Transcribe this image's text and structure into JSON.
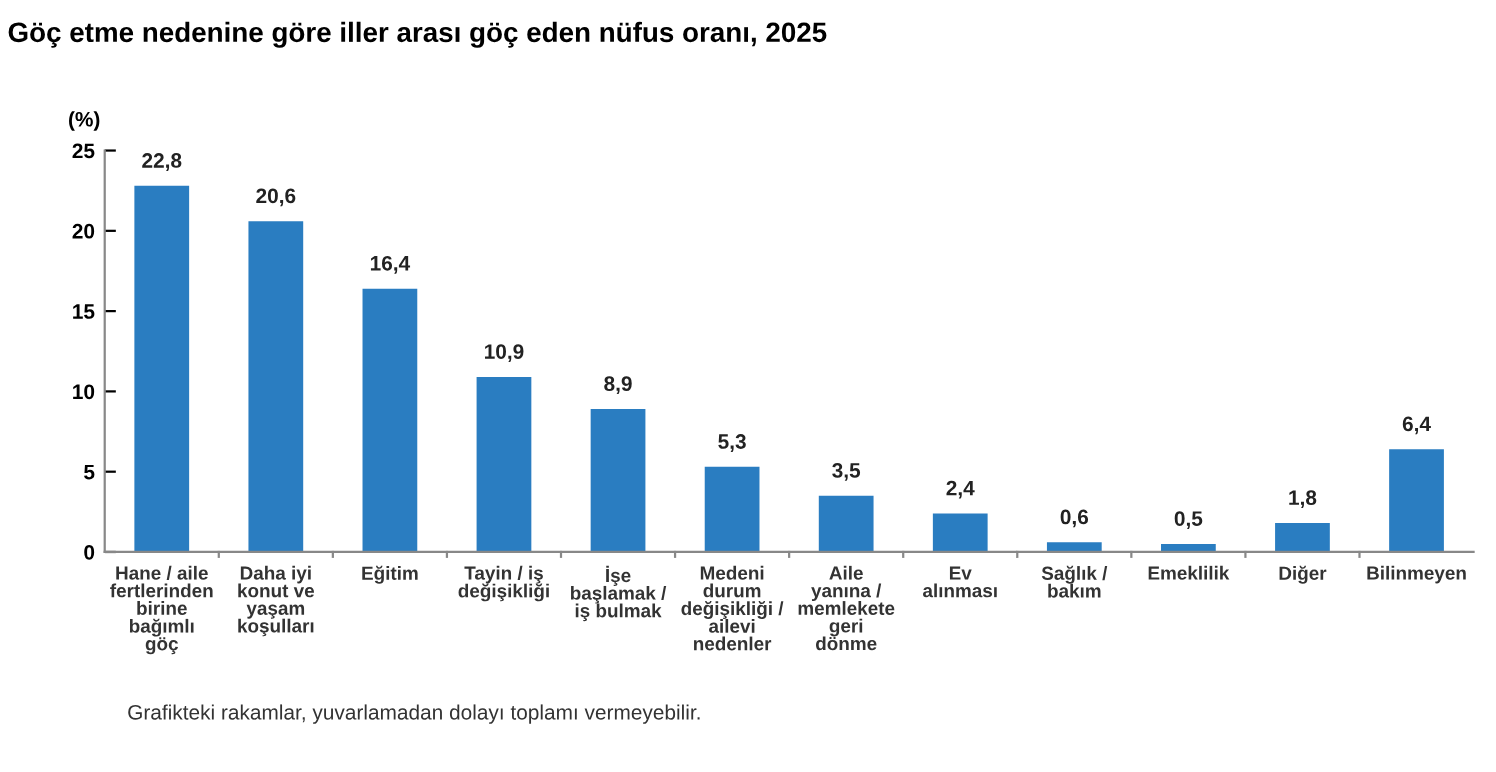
{
  "chart_data": {
    "type": "bar",
    "title": "Göç etme nedenine göre iller arası göç eden nüfus oranı, 2025",
    "ylabel": "(%)",
    "categories": [
      "Hane / aile\nfertlerinden\nbirine\nbağımlı\ngöç",
      "Daha iyi\nkonut ve\nyaşam\nkoşulları",
      "Eğitim",
      "Tayin / iş\ndeğişikliği",
      "İşe\nbaşlamak /\niş bulmak",
      "Medeni\ndurum\ndeğişikliği /\nailevi\nnedenler",
      "Aile\nyanına /\nmemlekete\ngeri\ndönme",
      "Ev\nalınması",
      "Sağlık /\nbakım",
      "Emeklilik",
      "Diğer",
      "Bilinmeyen"
    ],
    "values": [
      22.8,
      20.6,
      16.4,
      10.9,
      8.9,
      5.3,
      3.5,
      2.4,
      0.6,
      0.5,
      1.8,
      6.4
    ],
    "value_labels": [
      "22,8",
      "20,6",
      "16,4",
      "10,9",
      "8,9",
      "5,3",
      "3,5",
      "2,4",
      "0,6",
      "0,5",
      "1,8",
      "6,4"
    ],
    "color": "#2a7dc1",
    "ylim": [
      0,
      25
    ],
    "yticks": [
      0,
      5,
      10,
      15,
      20,
      25
    ],
    "grid": false,
    "legend": false,
    "annotations": [
      "Grafikteki rakamlar, yuvarlamadan dolayı toplamı vermeyebilir."
    ]
  }
}
